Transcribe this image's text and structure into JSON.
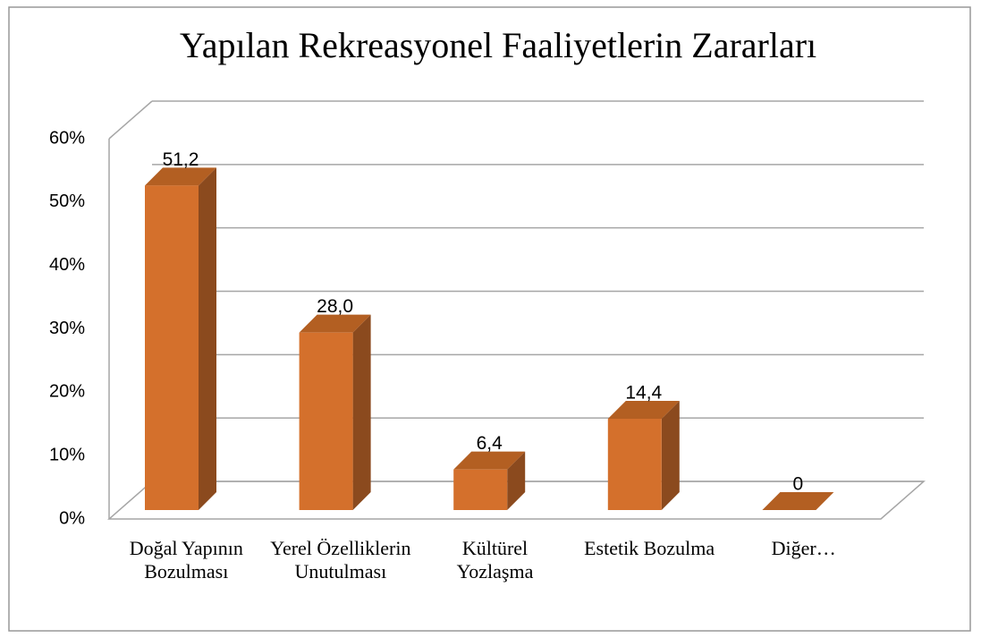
{
  "chart_data": {
    "type": "bar3d",
    "title": "Yapılan Rekreasyonel Faaliyetlerin Zararları",
    "categories": [
      "Doğal Yapının Bozulması",
      "Yerel Özelliklerin Unutulması",
      "Kültürel Yozlaşma",
      "Estetik Bozulma",
      "Diğer…"
    ],
    "values": [
      51.2,
      28.0,
      6.4,
      14.4,
      0
    ],
    "value_labels": [
      "51,2",
      "28,0",
      "6,4",
      "14,4",
      "0"
    ],
    "color": "#d4702c",
    "ylim": [
      0,
      60
    ],
    "yticks": [
      {
        "value": 0,
        "label": "0%"
      },
      {
        "value": 10,
        "label": "10%"
      },
      {
        "value": 20,
        "label": "20%"
      },
      {
        "value": 30,
        "label": "30%"
      },
      {
        "value": 40,
        "label": "40%"
      },
      {
        "value": 50,
        "label": "50%"
      },
      {
        "value": 60,
        "label": "60%"
      }
    ],
    "grid": true
  }
}
